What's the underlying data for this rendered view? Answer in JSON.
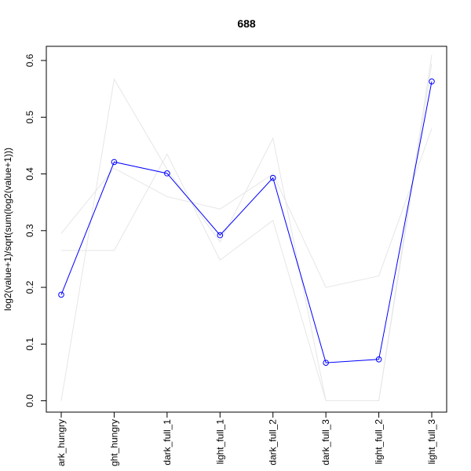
{
  "chart_data": {
    "type": "line",
    "title": "688",
    "xlabel": "",
    "ylabel": "log2(value+1)/sqrt(sum(log2(value+1)))",
    "categories": [
      "dark_hungry",
      "light_hungry",
      "dark_full_1",
      "light_full_1",
      "dark_full_2",
      "dark_full_3",
      "light_full_2",
      "light_full_3"
    ],
    "category_labels": [
      "ark_hungry",
      "ght_hungry",
      "dark_full_1",
      "light_full_1",
      "dark_full_2",
      "dark_full_3",
      "light_full_2",
      "light_full_3"
    ],
    "ylim": [
      -0.02,
      0.625
    ],
    "yticks": [
      0.0,
      0.1,
      0.2,
      0.3,
      0.4,
      0.5,
      0.6
    ],
    "ytick_labels": [
      "0.0",
      "0.1",
      "0.2",
      "0.3",
      "0.4",
      "0.5",
      "0.6"
    ],
    "grid": false,
    "legend": "none",
    "series": [
      {
        "role": "background",
        "color": "#e6e6e6",
        "values": [
          0.265,
          0.265,
          0.435,
          0.248,
          0.318,
          0.0,
          0.0,
          0.61
        ]
      },
      {
        "role": "background",
        "color": "#e6e6e6",
        "values": [
          0.295,
          0.41,
          0.36,
          0.338,
          0.4,
          0.2,
          0.22,
          0.48
        ]
      },
      {
        "role": "background",
        "color": "#e6e6e6",
        "values": [
          0.0,
          0.567,
          0.408,
          0.28,
          0.463,
          0.0,
          0.0,
          0.595
        ]
      },
      {
        "role": "highlight",
        "color": "#0000ff",
        "marker": "open-circle",
        "values": [
          0.187,
          0.421,
          0.401,
          0.292,
          0.393,
          0.067,
          0.073,
          0.563
        ]
      }
    ]
  }
}
